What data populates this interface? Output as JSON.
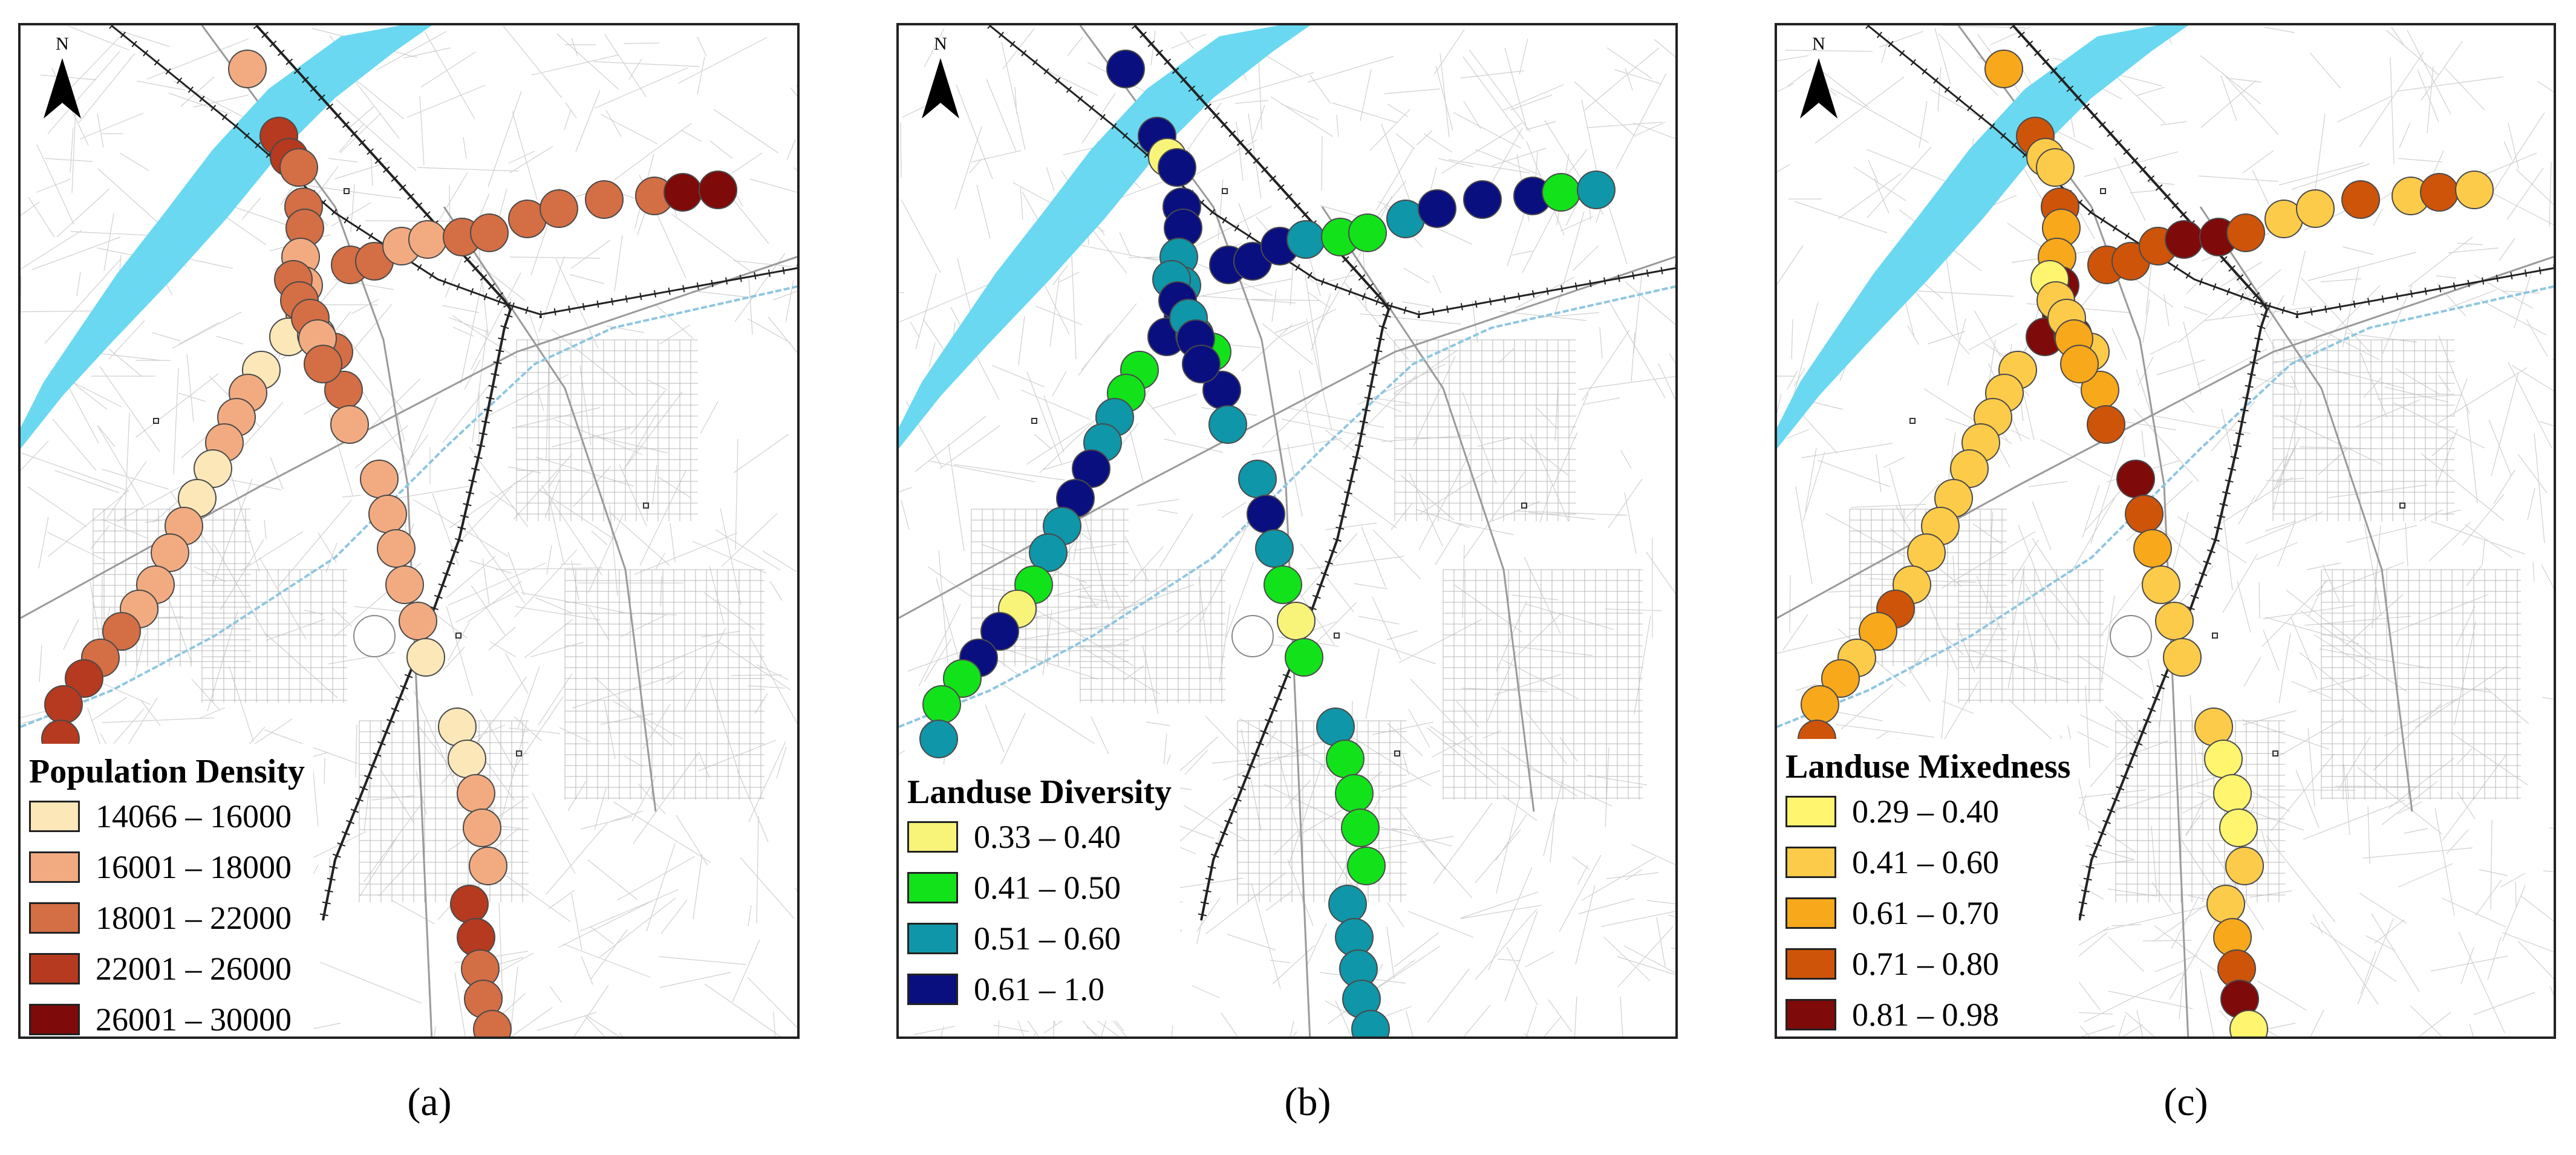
{
  "panels": [
    {
      "id": "a",
      "caption": "(a)",
      "north_label": "N",
      "legend": {
        "title": "Population Density",
        "classes": [
          {
            "label": "14066 – 16000",
            "color": "#FCE7B8"
          },
          {
            "label": "16001 – 18000",
            "color": "#F2AB81"
          },
          {
            "label": "18001 – 22000",
            "color": "#D46E45"
          },
          {
            "label": "22001 – 26000",
            "color": "#B53A1F"
          },
          {
            "label": "26001 – 30000",
            "color": "#7E0A0A"
          }
        ]
      },
      "stations": [
        2,
        4,
        4,
        3,
        3,
        3,
        2,
        2,
        2,
        1,
        1,
        3,
        3,
        2,
        2,
        2,
        2,
        2,
        2,
        1,
        1,
        2,
        2,
        2,
        1,
        1,
        2,
        2,
        2,
        2,
        3,
        3,
        4,
        4,
        4,
        3,
        3,
        2,
        2,
        3,
        3,
        3,
        3,
        3,
        3,
        5,
        5,
        1,
        1,
        2,
        2,
        2,
        4,
        4,
        3,
        3,
        3,
        3,
        3,
        3,
        2,
        3
      ]
    },
    {
      "id": "b",
      "caption": "(b)",
      "north_label": "N",
      "legend": {
        "title": "Landuse Diversity",
        "classes": [
          {
            "label": "0.33 – 0.40",
            "color": "#F8F47A"
          },
          {
            "label": "0.41 – 0.50",
            "color": "#12E21A"
          },
          {
            "label": "0.51 – 0.60",
            "color": "#0F96A8"
          },
          {
            "label": "0.61 – 1.0",
            "color": "#0A0F80"
          }
        ]
      },
      "stations": [
        4,
        4,
        1,
        4,
        4,
        4,
        3,
        3,
        4,
        4,
        3,
        2,
        4,
        3,
        3,
        4,
        3,
        2,
        1,
        2,
        2,
        2,
        3,
        3,
        4,
        4,
        3,
        3,
        2,
        1,
        4,
        4,
        2,
        2,
        3,
        4,
        4,
        4,
        3,
        2,
        2,
        3,
        4,
        4,
        4,
        2,
        3,
        3,
        2,
        2,
        2,
        2,
        3,
        3,
        3,
        3,
        3,
        3,
        4,
        3,
        4,
        4
      ]
    },
    {
      "id": "c",
      "caption": "(c)",
      "north_label": "N",
      "legend": {
        "title": "Landuse Mixedness",
        "classes": [
          {
            "label": "0.29 – 0.40",
            "color": "#FFF56E"
          },
          {
            "label": "0.41 – 0.60",
            "color": "#FDCB4A"
          },
          {
            "label": "0.61 – 0.70",
            "color": "#F8A81B"
          },
          {
            "label": "0.71 – 0.80",
            "color": "#CE5409"
          },
          {
            "label": "0.81 – 0.98",
            "color": "#7E0A0A"
          }
        ]
      },
      "stations": [
        3,
        4,
        2,
        2,
        4,
        3,
        3,
        5,
        5,
        5,
        5,
        2,
        3,
        4,
        5,
        4,
        3,
        2,
        2,
        2,
        2,
        2,
        2,
        2,
        2,
        2,
        2,
        2,
        2,
        4,
        3,
        2,
        3,
        3,
        4,
        4,
        4,
        4,
        5,
        5,
        4,
        2,
        2,
        4,
        2,
        4,
        2,
        2,
        1,
        1,
        1,
        2,
        2,
        3,
        4,
        5,
        1,
        1,
        2,
        2,
        3,
        3
      ]
    }
  ]
}
